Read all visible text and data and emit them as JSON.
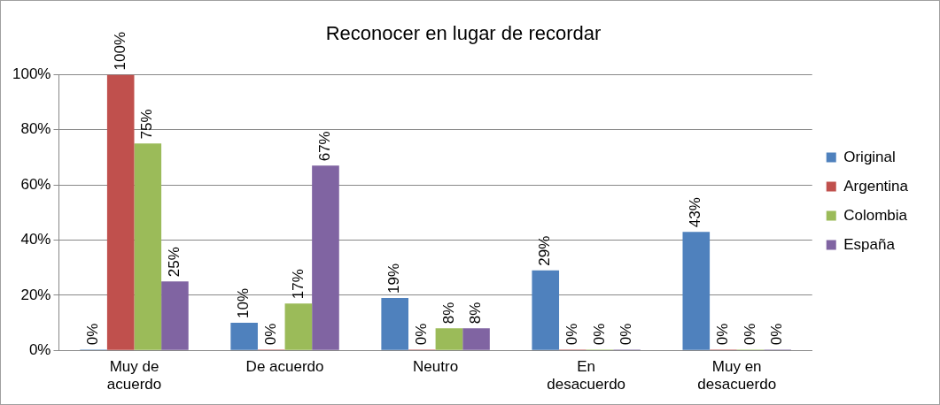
{
  "chart_data": {
    "type": "bar",
    "title": "Reconocer en lugar de recordar",
    "categories": [
      "Muy de acuerdo",
      "De acuerdo",
      "Neutro",
      "En desacuerdo",
      "Muy en desacuerdo"
    ],
    "series": [
      {
        "name": "Original",
        "color": "#4f81bd",
        "values": [
          0,
          10,
          19,
          29,
          43
        ],
        "value_labels": [
          "0%",
          "10%",
          "19%",
          "29%",
          "43%"
        ]
      },
      {
        "name": "Argentina",
        "color": "#c0504d",
        "values": [
          100,
          0,
          0,
          0,
          0
        ],
        "value_labels": [
          "100%",
          "0%",
          "0%",
          "0%",
          "0%"
        ]
      },
      {
        "name": "Colombia",
        "color": "#9bbb59",
        "values": [
          75,
          17,
          8,
          0,
          0
        ],
        "value_labels": [
          "75%",
          "17%",
          "8%",
          "0%",
          "0%"
        ]
      },
      {
        "name": "España",
        "color": "#8064a2",
        "values": [
          25,
          67,
          8,
          0,
          0
        ],
        "value_labels": [
          "25%",
          "67%",
          "8%",
          "0%",
          "0%"
        ]
      }
    ],
    "ylim": [
      0,
      100
    ],
    "yticks": [
      {
        "value": 0,
        "label": "0%"
      },
      {
        "value": 20,
        "label": "20%"
      },
      {
        "value": 40,
        "label": "40%"
      },
      {
        "value": 60,
        "label": "60%"
      },
      {
        "value": 80,
        "label": "80%"
      },
      {
        "value": 100,
        "label": "100%"
      }
    ],
    "grid": "y",
    "legend": "right"
  }
}
